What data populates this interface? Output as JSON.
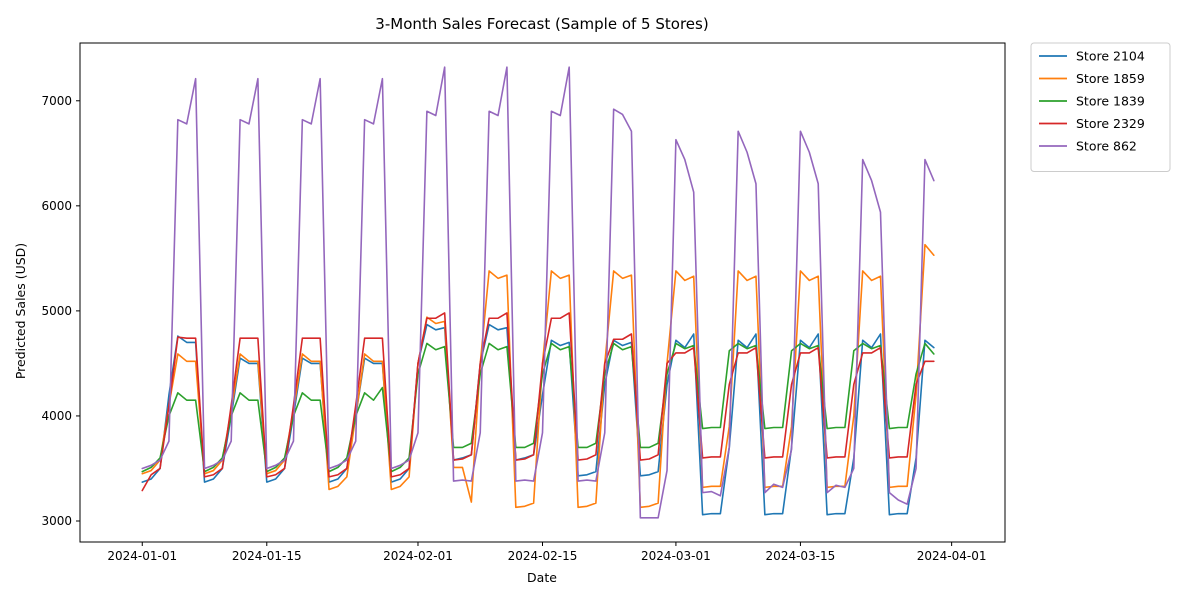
{
  "chart_data": {
    "type": "line",
    "title": "3-Month Sales Forecast (Sample of 5 Stores)",
    "xlabel": "Date",
    "ylabel": "Predicted Sales (USD)",
    "x_start": "2024-01-01",
    "x_end": "2024-03-31",
    "xlim": [
      "2023-12-25",
      "2024-04-07"
    ],
    "ylim": [
      2800,
      7550
    ],
    "x_ticks": [
      "2024-01-01",
      "2024-01-15",
      "2024-02-01",
      "2024-02-15",
      "2024-03-01",
      "2024-03-15",
      "2024-04-01"
    ],
    "y_ticks": [
      3000,
      4000,
      5000,
      6000,
      7000
    ],
    "grid": false,
    "legend_position": "outside-top-right",
    "series": [
      {
        "name": "Store 2104",
        "color": "#1f77b4",
        "values": [
          3370,
          3400,
          3500,
          4200,
          4760,
          4700,
          4700,
          3370,
          3400,
          3500,
          4000,
          4550,
          4500,
          4500,
          3370,
          3400,
          3500,
          4000,
          4550,
          4500,
          4500,
          3370,
          3400,
          3500,
          4000,
          4550,
          4500,
          4500,
          3370,
          3400,
          3500,
          4500,
          4870,
          4820,
          4840,
          3580,
          3600,
          3630,
          4500,
          4870,
          4820,
          4840,
          3580,
          3600,
          3630,
          4200,
          4720,
          4670,
          4700,
          3430,
          3440,
          3470,
          4300,
          4720,
          4670,
          4700,
          3430,
          3440,
          3470,
          4300,
          4720,
          4650,
          4780,
          3060,
          3070,
          3070,
          3700,
          4720,
          4650,
          4780,
          3060,
          3070,
          3070,
          3700,
          4720,
          4650,
          4780,
          3060,
          3070,
          3070,
          3600,
          4720,
          4650,
          4780,
          3060,
          3070,
          3070,
          3600,
          4720,
          4650
        ]
      },
      {
        "name": "Store 1859",
        "color": "#ff7f0e",
        "values": [
          3450,
          3480,
          3580,
          4100,
          4590,
          4520,
          4520,
          3450,
          3480,
          3580,
          4050,
          4590,
          4520,
          4520,
          3450,
          3480,
          3580,
          4050,
          4590,
          4520,
          4520,
          3300,
          3330,
          3420,
          4000,
          4590,
          4520,
          4520,
          3300,
          3330,
          3420,
          4500,
          4940,
          4880,
          4900,
          3510,
          3510,
          3180,
          4500,
          5380,
          5310,
          5340,
          3130,
          3140,
          3170,
          4500,
          5380,
          5310,
          5340,
          3130,
          3140,
          3170,
          4500,
          5380,
          5310,
          5340,
          3130,
          3140,
          3170,
          4500,
          5380,
          5290,
          5330,
          3320,
          3330,
          3330,
          3900,
          5380,
          5290,
          5330,
          3320,
          3330,
          3330,
          3900,
          5380,
          5290,
          5330,
          3320,
          3330,
          3330,
          4000,
          5380,
          5290,
          5330,
          3320,
          3330,
          3330,
          4200,
          5630,
          5530
        ]
      },
      {
        "name": "Store 1839",
        "color": "#2ca02c",
        "values": [
          3470,
          3510,
          3600,
          4000,
          4220,
          4150,
          4150,
          3470,
          3510,
          3600,
          4000,
          4220,
          4150,
          4150,
          3470,
          3510,
          3600,
          4000,
          4220,
          4150,
          4150,
          3470,
          3510,
          3600,
          4000,
          4220,
          4150,
          4270,
          3470,
          3510,
          3600,
          4400,
          4690,
          4630,
          4660,
          3700,
          3700,
          3740,
          4400,
          4690,
          4630,
          4660,
          3700,
          3700,
          3740,
          4400,
          4690,
          4630,
          4660,
          3700,
          3700,
          3740,
          4400,
          4690,
          4630,
          4660,
          3700,
          3700,
          3740,
          4400,
          4690,
          4640,
          4670,
          3880,
          3890,
          3890,
          4620,
          4690,
          4640,
          4670,
          3880,
          3890,
          3890,
          4620,
          4690,
          4640,
          4670,
          3880,
          3890,
          3890,
          4620,
          4690,
          4640,
          4670,
          3880,
          3890,
          3890,
          4400,
          4690,
          4590
        ]
      },
      {
        "name": "Store 2329",
        "color": "#d62728",
        "values": [
          3290,
          3440,
          3500,
          4100,
          4750,
          4740,
          4740,
          3420,
          3440,
          3500,
          4100,
          4740,
          4740,
          4740,
          3420,
          3440,
          3500,
          4100,
          4740,
          4740,
          4740,
          3420,
          3440,
          3500,
          4100,
          4740,
          4740,
          4740,
          3420,
          3440,
          3500,
          4500,
          4930,
          4930,
          4980,
          3580,
          3590,
          3630,
          4500,
          4930,
          4930,
          4980,
          3580,
          3590,
          3630,
          4500,
          4930,
          4930,
          4980,
          3580,
          3590,
          3630,
          4500,
          4730,
          4730,
          4780,
          3580,
          3590,
          3630,
          4500,
          4600,
          4600,
          4650,
          3600,
          3610,
          3610,
          4300,
          4600,
          4600,
          4650,
          3600,
          3610,
          3610,
          4300,
          4600,
          4600,
          4650,
          3600,
          3610,
          3610,
          4300,
          4600,
          4600,
          4650,
          3600,
          3610,
          3610,
          4300,
          4520,
          4520
        ]
      },
      {
        "name": "Store 862",
        "color": "#9467bd",
        "values": [
          3500,
          3530,
          3580,
          3760,
          6820,
          6780,
          7210,
          3500,
          3530,
          3580,
          3760,
          6820,
          6780,
          7210,
          3500,
          3530,
          3580,
          3760,
          6820,
          6780,
          7210,
          3500,
          3530,
          3580,
          3760,
          6820,
          6780,
          7210,
          3500,
          3530,
          3580,
          3840,
          6900,
          6860,
          7320,
          3380,
          3390,
          3380,
          3840,
          6900,
          6860,
          7320,
          3380,
          3390,
          3380,
          3840,
          6900,
          6860,
          7320,
          3380,
          3390,
          3380,
          3840,
          6920,
          6870,
          6710,
          3030,
          3030,
          3030,
          3480,
          6630,
          6440,
          6130,
          3270,
          3280,
          3240,
          3700,
          6710,
          6510,
          6210,
          3270,
          3350,
          3320,
          3680,
          6710,
          6510,
          6210,
          3270,
          3340,
          3320,
          3500,
          6440,
          6240,
          5940,
          3270,
          3200,
          3160,
          3500,
          6440,
          6240
        ]
      }
    ]
  }
}
